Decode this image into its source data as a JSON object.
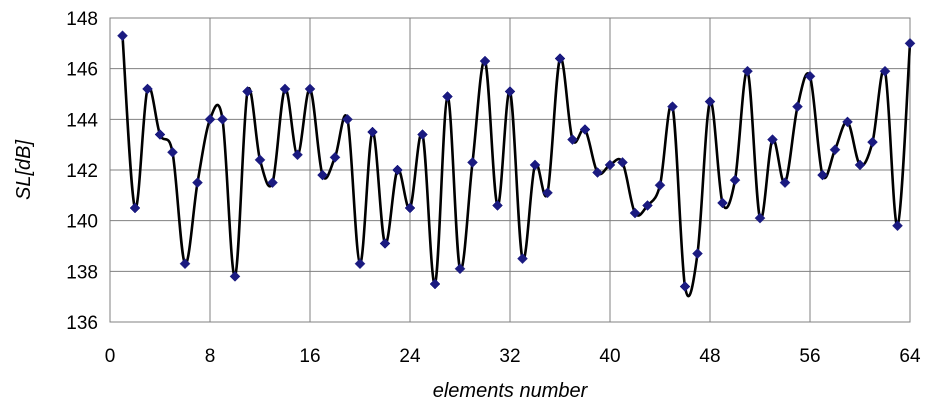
{
  "chart_data": {
    "type": "line",
    "title": "",
    "xlabel": "elements number",
    "ylabel": "SL[dB]",
    "xlim": [
      0,
      64
    ],
    "ylim": [
      136,
      148
    ],
    "x_ticks": [
      0,
      8,
      16,
      24,
      32,
      40,
      48,
      56,
      64
    ],
    "y_ticks": [
      136,
      138,
      140,
      142,
      144,
      146,
      148
    ],
    "grid": true,
    "legend": "none",
    "line_color": "#000000",
    "marker_color": "#1a1a80",
    "marker": "diamond",
    "series": [
      {
        "x": [
          1,
          2,
          3,
          4,
          5,
          6,
          7,
          8,
          9,
          10,
          11,
          12,
          13,
          14,
          15,
          16,
          17,
          18,
          19,
          20,
          21,
          22,
          23,
          24,
          25,
          26,
          27,
          28,
          29,
          30,
          31,
          32,
          33,
          34,
          35,
          36,
          37,
          38,
          39,
          40,
          41,
          42,
          43,
          44,
          45,
          46,
          47,
          48,
          49,
          50,
          51,
          52,
          53,
          54,
          55,
          56,
          57,
          58,
          59,
          60,
          61,
          62,
          63,
          64
        ],
        "values": [
          147.3,
          140.5,
          145.2,
          143.4,
          142.7,
          138.3,
          141.5,
          144.0,
          144.0,
          137.8,
          145.1,
          142.4,
          141.5,
          145.2,
          142.6,
          145.2,
          141.8,
          142.5,
          144.0,
          138.3,
          143.5,
          139.1,
          142.0,
          140.5,
          143.4,
          137.5,
          144.9,
          138.1,
          142.3,
          146.3,
          140.6,
          145.1,
          138.5,
          142.2,
          141.1,
          146.4,
          143.2,
          143.6,
          141.9,
          142.2,
          142.3,
          140.3,
          140.6,
          141.4,
          144.5,
          137.4,
          138.7,
          144.7,
          140.7,
          141.6,
          145.9,
          140.1,
          143.2,
          141.5,
          144.5,
          145.7,
          141.8,
          142.8,
          143.9,
          142.2,
          143.1,
          145.9,
          139.8,
          147.0
        ]
      }
    ]
  }
}
